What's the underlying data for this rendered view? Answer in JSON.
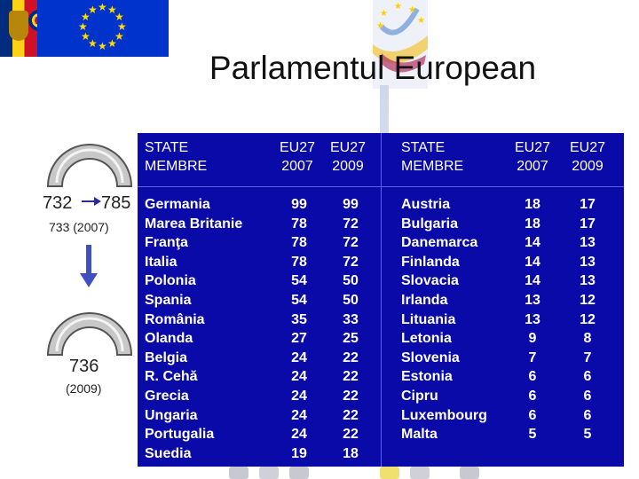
{
  "logos": {
    "left_flag_icon": "romania-flag-icon",
    "eu_flag_icon": "eu-flag-icon",
    "parliament_logo_icon": "european-parliament-logo-icon"
  },
  "title": "Parlamentul European",
  "diagram": {
    "before_value": "732",
    "after_value": "785",
    "mid_label": "733 (2007)",
    "final_value": "736",
    "final_year": "(2009)"
  },
  "table": {
    "left_headers": {
      "state": "STATE\nMEMBRE",
      "eu27_2007": "EU27\n2007",
      "eu27_2009": "EU27\n2009"
    },
    "right_headers": {
      "state": "STATE\nMEMBRE",
      "eu27_2007": "EU27\n2007",
      "eu27_2009": "EU27\n2009"
    },
    "left_rows": [
      {
        "state": "Germania",
        "y2007": "99",
        "y2009": "99"
      },
      {
        "state": "Marea Britanie",
        "y2007": "78",
        "y2009": "72"
      },
      {
        "state": "Franţa",
        "y2007": "78",
        "y2009": "72"
      },
      {
        "state": "Italia",
        "y2007": "78",
        "y2009": "72"
      },
      {
        "state": "Polonia",
        "y2007": "54",
        "y2009": "50"
      },
      {
        "state": "Spania",
        "y2007": "54",
        "y2009": "50"
      },
      {
        "state": "România",
        "y2007": "35",
        "y2009": "33"
      },
      {
        "state": "Olanda",
        "y2007": "27",
        "y2009": "25"
      },
      {
        "state": "Belgia",
        "y2007": "24",
        "y2009": "22"
      },
      {
        "state": "R. Cehă",
        "y2007": "24",
        "y2009": "22"
      },
      {
        "state": "Grecia",
        "y2007": "24",
        "y2009": "22"
      },
      {
        "state": "Ungaria",
        "y2007": "24",
        "y2009": "22"
      },
      {
        "state": "Portugalia",
        "y2007": "24",
        "y2009": "22"
      },
      {
        "state": "Suedia",
        "y2007": "19",
        "y2009": "18"
      }
    ],
    "right_rows": [
      {
        "state": "Austria",
        "y2007": "18",
        "y2009": "17"
      },
      {
        "state": "Bulgaria",
        "y2007": "18",
        "y2009": "17"
      },
      {
        "state": "Danemarca",
        "y2007": "14",
        "y2009": "13"
      },
      {
        "state": "Finlanda",
        "y2007": "14",
        "y2009": "13"
      },
      {
        "state": "Slovacia",
        "y2007": "14",
        "y2009": "13"
      },
      {
        "state": "Irlanda",
        "y2007": "13",
        "y2009": "12"
      },
      {
        "state": "Lituania",
        "y2007": "13",
        "y2009": "12"
      },
      {
        "state": "Letonia",
        "y2007": "9",
        "y2009": "8"
      },
      {
        "state": "Slovenia",
        "y2007": "7",
        "y2009": "7"
      },
      {
        "state": "Estonia",
        "y2007": "6",
        "y2009": "6"
      },
      {
        "state": "Cipru",
        "y2007": "6",
        "y2009": "6"
      },
      {
        "state": "Luxembourg",
        "y2007": "6",
        "y2009": "6"
      },
      {
        "state": "Malta",
        "y2007": "5",
        "y2009": "5"
      }
    ]
  },
  "colors": {
    "panel_blue": "#0a0aa8",
    "eu_blue": "#0033cc",
    "eu_star_yellow": "#ffdd00"
  }
}
